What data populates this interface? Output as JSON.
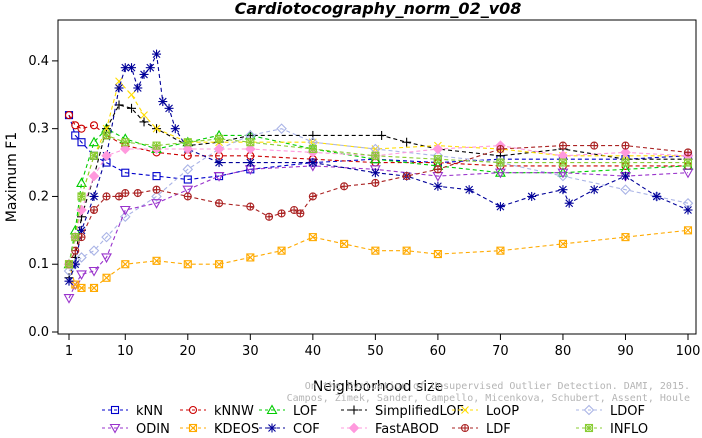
{
  "chart_data": {
    "type": "line",
    "title": "Cardiotocography_norm_02_v08",
    "xlabel": "Neighborhood size",
    "ylabel": "Maximum F1",
    "xlim": [
      1,
      100
    ],
    "ylim": [
      0.0,
      0.45
    ],
    "xticks": [
      "1",
      "10",
      "20",
      "30",
      "40",
      "50",
      "60",
      "70",
      "80",
      "90",
      "100"
    ],
    "yticks": [
      "0.0",
      "0.1",
      "0.2",
      "0.3",
      "0.4"
    ],
    "grid": false,
    "legend_position": "bottom",
    "watermark": "Campos, Zimek, Sander, Campello, Micenkova, Schubert, Assent, Houle\nOn the Evaluation of Unsupervised Outlier Detection. DAMI, 2015.",
    "series": [
      {
        "name": "kNN",
        "color": "#0000cc",
        "marker": "square",
        "x": [
          1,
          2,
          3,
          5,
          7,
          10,
          15,
          20,
          25,
          30,
          40,
          50,
          60,
          70,
          80,
          90,
          100
        ],
        "y": [
          0.32,
          0.29,
          0.28,
          0.26,
          0.25,
          0.235,
          0.23,
          0.225,
          0.23,
          0.24,
          0.25,
          0.255,
          0.25,
          0.255,
          0.255,
          0.255,
          0.26
        ]
      },
      {
        "name": "kNNW",
        "color": "#cc0000",
        "marker": "circle",
        "x": [
          1,
          2,
          3,
          5,
          7,
          10,
          15,
          20,
          25,
          30,
          40,
          50,
          60,
          70,
          80,
          90,
          100
        ],
        "y": [
          0.32,
          0.305,
          0.3,
          0.305,
          0.29,
          0.275,
          0.265,
          0.26,
          0.26,
          0.26,
          0.255,
          0.25,
          0.25,
          0.245,
          0.245,
          0.245,
          0.245
        ]
      },
      {
        "name": "LOF",
        "color": "#00cc00",
        "marker": "triangle-up",
        "x": [
          1,
          2,
          3,
          5,
          7,
          10,
          15,
          20,
          25,
          30,
          40,
          50,
          60,
          70,
          80,
          90,
          100
        ],
        "y": [
          0.1,
          0.15,
          0.22,
          0.28,
          0.3,
          0.285,
          0.27,
          0.28,
          0.29,
          0.29,
          0.27,
          0.255,
          0.245,
          0.235,
          0.235,
          0.24,
          0.245
        ]
      },
      {
        "name": "SimplifiedLOF",
        "color": "#000000",
        "marker": "plus",
        "x": [
          1,
          2,
          3,
          5,
          7,
          9,
          11,
          13,
          15,
          20,
          25,
          30,
          40,
          51,
          55,
          60,
          70,
          80,
          90,
          100
        ],
        "y": [
          0.08,
          0.11,
          0.17,
          0.23,
          0.3,
          0.335,
          0.33,
          0.31,
          0.3,
          0.275,
          0.28,
          0.29,
          0.29,
          0.29,
          0.28,
          0.27,
          0.26,
          0.27,
          0.255,
          0.255
        ]
      },
      {
        "name": "LoOP",
        "color": "#ffdd00",
        "marker": "cross",
        "x": [
          1,
          2,
          3,
          5,
          7,
          9,
          11,
          13,
          15,
          20,
          25,
          30,
          40,
          50,
          60,
          70,
          80,
          90,
          100
        ],
        "y": [
          0.1,
          0.14,
          0.2,
          0.26,
          0.3,
          0.37,
          0.35,
          0.32,
          0.3,
          0.28,
          0.28,
          0.28,
          0.28,
          0.27,
          0.275,
          0.27,
          0.26,
          0.26,
          0.26
        ]
      },
      {
        "name": "LDOF",
        "color": "#aab4e6",
        "marker": "diamond",
        "x": [
          1,
          2,
          3,
          5,
          7,
          10,
          15,
          20,
          25,
          30,
          35,
          40,
          50,
          60,
          70,
          80,
          90,
          95,
          100
        ],
        "y": [
          0.09,
          0.1,
          0.11,
          0.12,
          0.14,
          0.17,
          0.2,
          0.24,
          0.27,
          0.29,
          0.3,
          0.28,
          0.27,
          0.26,
          0.25,
          0.23,
          0.21,
          0.2,
          0.19
        ]
      },
      {
        "name": "ODIN",
        "color": "#9933cc",
        "marker": "triangle-down",
        "x": [
          1,
          2,
          3,
          5,
          7,
          10,
          15,
          20,
          25,
          30,
          40,
          50,
          60,
          70,
          80,
          90,
          100
        ],
        "y": [
          0.05,
          0.07,
          0.085,
          0.09,
          0.11,
          0.18,
          0.19,
          0.21,
          0.23,
          0.24,
          0.245,
          0.24,
          0.23,
          0.235,
          0.235,
          0.23,
          0.235
        ]
      },
      {
        "name": "KDEOS",
        "color": "#ffaa00",
        "marker": "square-x",
        "x": [
          1,
          2,
          3,
          5,
          7,
          10,
          15,
          20,
          25,
          30,
          35,
          40,
          45,
          50,
          55,
          60,
          70,
          80,
          90,
          100
        ],
        "y": [
          0.1,
          0.07,
          0.065,
          0.065,
          0.08,
          0.1,
          0.105,
          0.1,
          0.1,
          0.11,
          0.12,
          0.14,
          0.13,
          0.12,
          0.12,
          0.115,
          0.12,
          0.13,
          0.14,
          0.15
        ]
      },
      {
        "name": "COF",
        "color": "#000099",
        "marker": "asterisk",
        "x": [
          1,
          2,
          3,
          5,
          7,
          9,
          10,
          11,
          12,
          13,
          14,
          15,
          16,
          17,
          18,
          20,
          25,
          30,
          40,
          50,
          55,
          60,
          65,
          70,
          75,
          80,
          81,
          85,
          90,
          95,
          100
        ],
        "y": [
          0.075,
          0.1,
          0.15,
          0.2,
          0.26,
          0.36,
          0.39,
          0.39,
          0.36,
          0.38,
          0.39,
          0.41,
          0.34,
          0.33,
          0.3,
          0.27,
          0.25,
          0.25,
          0.25,
          0.235,
          0.23,
          0.215,
          0.21,
          0.185,
          0.2,
          0.21,
          0.19,
          0.21,
          0.23,
          0.2,
          0.18
        ]
      },
      {
        "name": "FastABOD",
        "color": "#ff99dd",
        "marker": "diamond-filled",
        "x": [
          1,
          2,
          3,
          5,
          7,
          10,
          15,
          20,
          25,
          30,
          40,
          50,
          60,
          70,
          80,
          90,
          100
        ],
        "y": [
          0.1,
          0.14,
          0.18,
          0.23,
          0.26,
          0.27,
          0.27,
          0.27,
          0.27,
          0.27,
          0.265,
          0.26,
          0.27,
          0.275,
          0.26,
          0.265,
          0.26
        ]
      },
      {
        "name": "LDF",
        "color": "#aa2222",
        "marker": "circle-plus",
        "x": [
          1,
          2,
          3,
          5,
          7,
          9,
          10,
          12,
          15,
          20,
          25,
          30,
          33,
          35,
          37,
          38,
          40,
          45,
          50,
          55,
          60,
          70,
          80,
          85,
          90,
          100
        ],
        "y": [
          0.1,
          0.12,
          0.14,
          0.18,
          0.2,
          0.2,
          0.205,
          0.205,
          0.21,
          0.2,
          0.19,
          0.185,
          0.17,
          0.175,
          0.18,
          0.175,
          0.2,
          0.215,
          0.22,
          0.23,
          0.24,
          0.27,
          0.275,
          0.275,
          0.275,
          0.265
        ]
      },
      {
        "name": "INFLO",
        "color": "#88cc33",
        "marker": "square-star",
        "x": [
          1,
          2,
          3,
          5,
          7,
          10,
          15,
          20,
          25,
          30,
          40,
          50,
          60,
          70,
          80,
          90,
          100
        ],
        "y": [
          0.1,
          0.14,
          0.2,
          0.26,
          0.29,
          0.28,
          0.275,
          0.28,
          0.285,
          0.28,
          0.27,
          0.26,
          0.255,
          0.25,
          0.25,
          0.25,
          0.25
        ]
      }
    ]
  }
}
